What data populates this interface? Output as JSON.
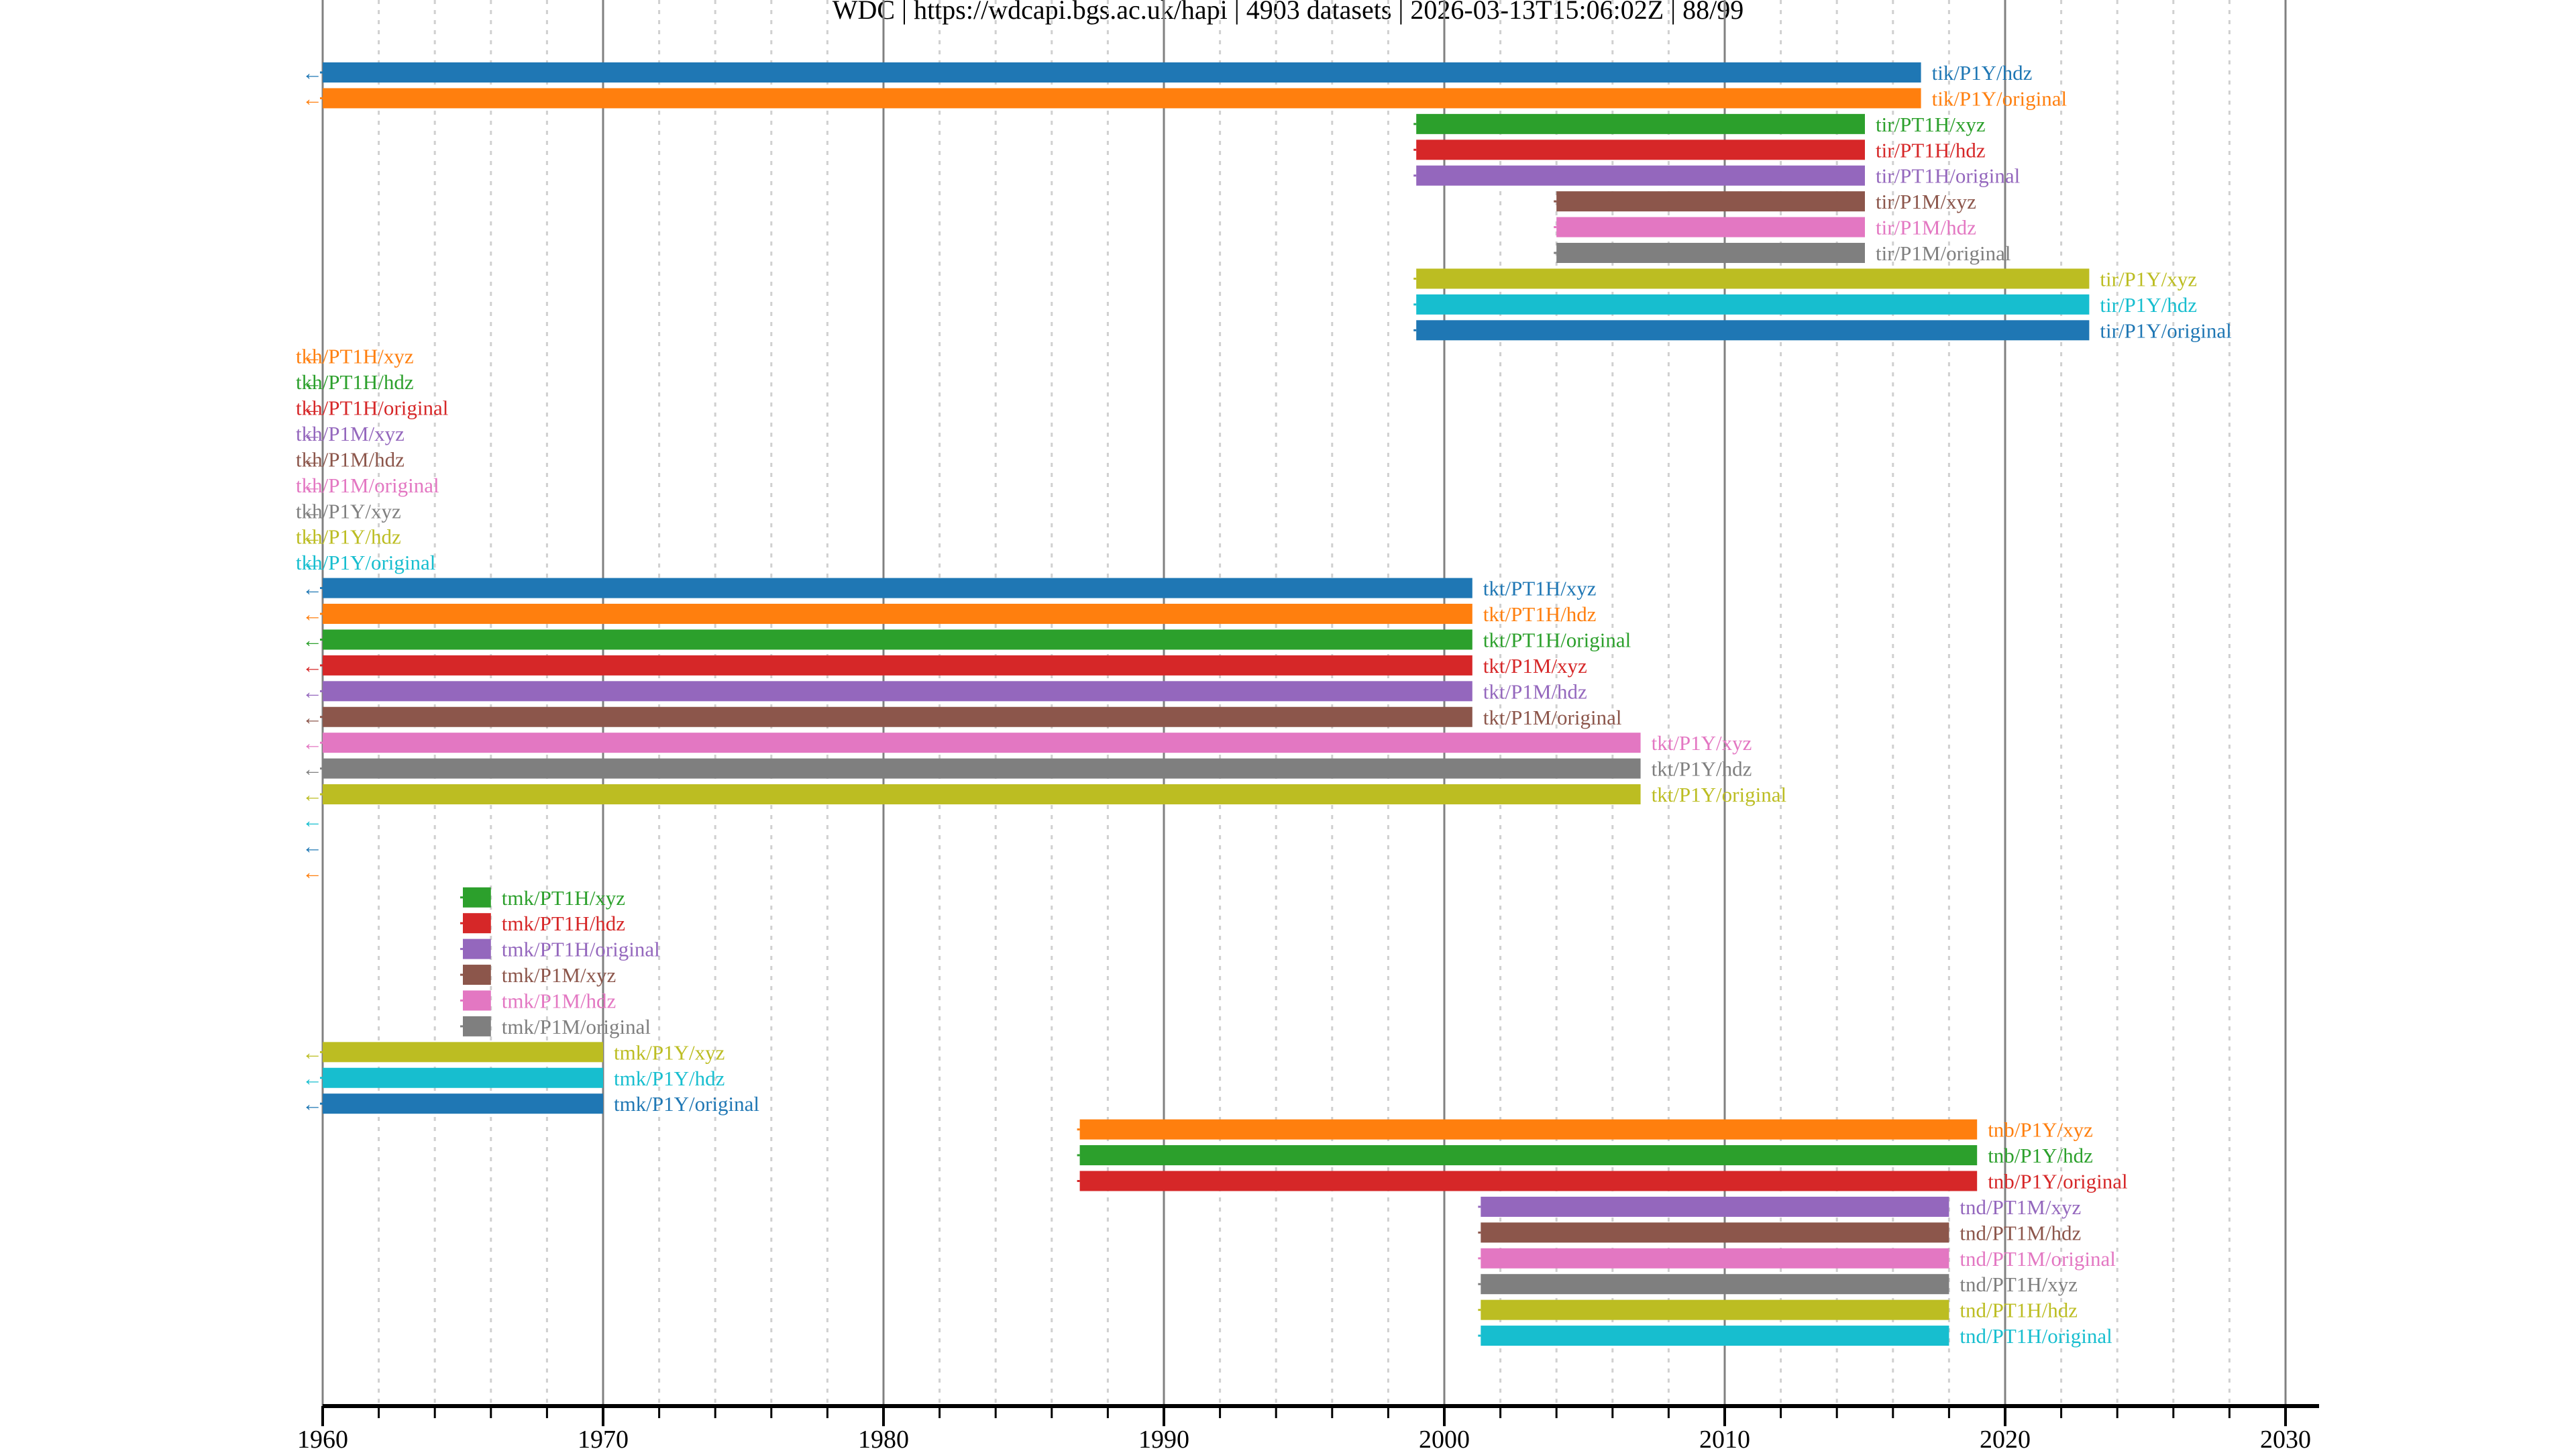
{
  "chart_data": {
    "type": "gantt-timeline",
    "title": "WDC | https://wdcapi.bgs.ac.uk/hapi | 4903 datasets | 2026-03-13T15:06:02Z | 88/99",
    "xlabel": "",
    "ylabel": "",
    "xlim": [
      1960,
      2031
    ],
    "grid": {
      "major_every_years": 10,
      "minor_every_years": 2,
      "on": true
    },
    "x_ticks": [
      "1960",
      "1970",
      "1980",
      "1990",
      "2000",
      "2010",
      "2020",
      "2030"
    ],
    "palette": [
      "#1f77b4",
      "#ff7f0e",
      "#2ca02c",
      "#d62728",
      "#9467bd",
      "#8c564b",
      "#e377c2",
      "#7f7f7f",
      "#bcbd22",
      "#17becf"
    ],
    "rows": [
      {
        "label": "tik/P1Y/hdz",
        "start": 1960,
        "end": 2017,
        "color": "#1f77b4",
        "starts_before_range": true
      },
      {
        "label": "tik/P1Y/original",
        "start": 1960,
        "end": 2017,
        "color": "#ff7f0e",
        "starts_before_range": true
      },
      {
        "label": "tir/PT1H/xyz",
        "start": 1999,
        "end": 2015,
        "color": "#2ca02c"
      },
      {
        "label": "tir/PT1H/hdz",
        "start": 1999,
        "end": 2015,
        "color": "#d62728"
      },
      {
        "label": "tir/PT1H/original",
        "start": 1999,
        "end": 2015,
        "color": "#9467bd"
      },
      {
        "label": "tir/P1M/xyz",
        "start": 2004,
        "end": 2015,
        "color": "#8c564b"
      },
      {
        "label": "tir/P1M/hdz",
        "start": 2004,
        "end": 2015,
        "color": "#e377c2"
      },
      {
        "label": "tir/P1M/original",
        "start": 2004,
        "end": 2015,
        "color": "#7f7f7f"
      },
      {
        "label": "tir/P1Y/xyz",
        "start": 1999,
        "end": 2023,
        "color": "#bcbd22"
      },
      {
        "label": "tir/P1Y/hdz",
        "start": 1999,
        "end": 2023,
        "color": "#17becf"
      },
      {
        "label": "tir/P1Y/original",
        "start": 1999,
        "end": 2023,
        "color": "#1f77b4"
      },
      {
        "label": "tkh/PT1H/xyz",
        "start": null,
        "end": null,
        "color": "#ff7f0e",
        "starts_before_range": true
      },
      {
        "label": "tkh/PT1H/hdz",
        "start": null,
        "end": null,
        "color": "#2ca02c",
        "starts_before_range": true
      },
      {
        "label": "tkh/PT1H/original",
        "start": null,
        "end": null,
        "color": "#d62728",
        "starts_before_range": true
      },
      {
        "label": "tkh/P1M/xyz",
        "start": null,
        "end": null,
        "color": "#9467bd",
        "starts_before_range": true
      },
      {
        "label": "tkh/P1M/hdz",
        "start": null,
        "end": null,
        "color": "#8c564b",
        "starts_before_range": true
      },
      {
        "label": "tkh/P1M/original",
        "start": null,
        "end": null,
        "color": "#e377c2",
        "starts_before_range": true
      },
      {
        "label": "tkh/P1Y/xyz",
        "start": null,
        "end": null,
        "color": "#7f7f7f",
        "starts_before_range": true
      },
      {
        "label": "tkh/P1Y/hdz",
        "start": null,
        "end": null,
        "color": "#bcbd22",
        "starts_before_range": true
      },
      {
        "label": "tkh/P1Y/original",
        "start": null,
        "end": null,
        "color": "#17becf",
        "starts_before_range": true
      },
      {
        "label": "tkt/PT1H/xyz",
        "start": 1960,
        "end": 2001,
        "color": "#1f77b4",
        "starts_before_range": true
      },
      {
        "label": "tkt/PT1H/hdz",
        "start": 1960,
        "end": 2001,
        "color": "#ff7f0e",
        "starts_before_range": true
      },
      {
        "label": "tkt/PT1H/original",
        "start": 1960,
        "end": 2001,
        "color": "#2ca02c",
        "starts_before_range": true
      },
      {
        "label": "tkt/P1M/xyz",
        "start": 1960,
        "end": 2001,
        "color": "#d62728",
        "starts_before_range": true
      },
      {
        "label": "tkt/P1M/hdz",
        "start": 1960,
        "end": 2001,
        "color": "#9467bd",
        "starts_before_range": true
      },
      {
        "label": "tkt/P1M/original",
        "start": 1960,
        "end": 2001,
        "color": "#8c564b",
        "starts_before_range": true
      },
      {
        "label": "tkt/P1Y/xyz",
        "start": 1960,
        "end": 2007,
        "color": "#e377c2",
        "starts_before_range": true
      },
      {
        "label": "tkt/P1Y/hdz",
        "start": 1960,
        "end": 2007,
        "color": "#7f7f7f",
        "starts_before_range": true
      },
      {
        "label": "tkt/P1Y/original",
        "start": 1960,
        "end": 2007,
        "color": "#bcbd22",
        "starts_before_range": true
      },
      {
        "label": "",
        "start": null,
        "end": null,
        "color": "#17becf",
        "starts_before_range": true
      },
      {
        "label": "",
        "start": null,
        "end": null,
        "color": "#1f77b4",
        "starts_before_range": true
      },
      {
        "label": "",
        "start": null,
        "end": null,
        "color": "#ff7f0e",
        "starts_before_range": true
      },
      {
        "label": "tmk/PT1H/xyz",
        "start": 1965,
        "end": 1966,
        "color": "#2ca02c"
      },
      {
        "label": "tmk/PT1H/hdz",
        "start": 1965,
        "end": 1966,
        "color": "#d62728"
      },
      {
        "label": "tmk/PT1H/original",
        "start": 1965,
        "end": 1966,
        "color": "#9467bd"
      },
      {
        "label": "tmk/P1M/xyz",
        "start": 1965,
        "end": 1966,
        "color": "#8c564b"
      },
      {
        "label": "tmk/P1M/hdz",
        "start": 1965,
        "end": 1966,
        "color": "#e377c2"
      },
      {
        "label": "tmk/P1M/original",
        "start": 1965,
        "end": 1966,
        "color": "#7f7f7f"
      },
      {
        "label": "tmk/P1Y/xyz",
        "start": 1960,
        "end": 1970,
        "color": "#bcbd22",
        "starts_before_range": true
      },
      {
        "label": "tmk/P1Y/hdz",
        "start": 1960,
        "end": 1970,
        "color": "#17becf",
        "starts_before_range": true
      },
      {
        "label": "tmk/P1Y/original",
        "start": 1960,
        "end": 1970,
        "color": "#1f77b4",
        "starts_before_range": true
      },
      {
        "label": "tnb/P1Y/xyz",
        "start": 1987,
        "end": 2019,
        "color": "#ff7f0e"
      },
      {
        "label": "tnb/P1Y/hdz",
        "start": 1987,
        "end": 2019,
        "color": "#2ca02c"
      },
      {
        "label": "tnb/P1Y/original",
        "start": 1987,
        "end": 2019,
        "color": "#d62728"
      },
      {
        "label": "tnd/PT1M/xyz",
        "start": 2001.3,
        "end": 2018,
        "color": "#9467bd"
      },
      {
        "label": "tnd/PT1M/hdz",
        "start": 2001.3,
        "end": 2018,
        "color": "#8c564b"
      },
      {
        "label": "tnd/PT1M/original",
        "start": 2001.3,
        "end": 2018,
        "color": "#e377c2"
      },
      {
        "label": "tnd/PT1H/xyz",
        "start": 2001.3,
        "end": 2018,
        "color": "#7f7f7f"
      },
      {
        "label": "tnd/PT1H/hdz",
        "start": 2001.3,
        "end": 2018,
        "color": "#bcbd22"
      },
      {
        "label": "tnd/PT1H/original",
        "start": 2001.3,
        "end": 2018,
        "color": "#17becf"
      }
    ],
    "arrow_glyph": "←"
  }
}
